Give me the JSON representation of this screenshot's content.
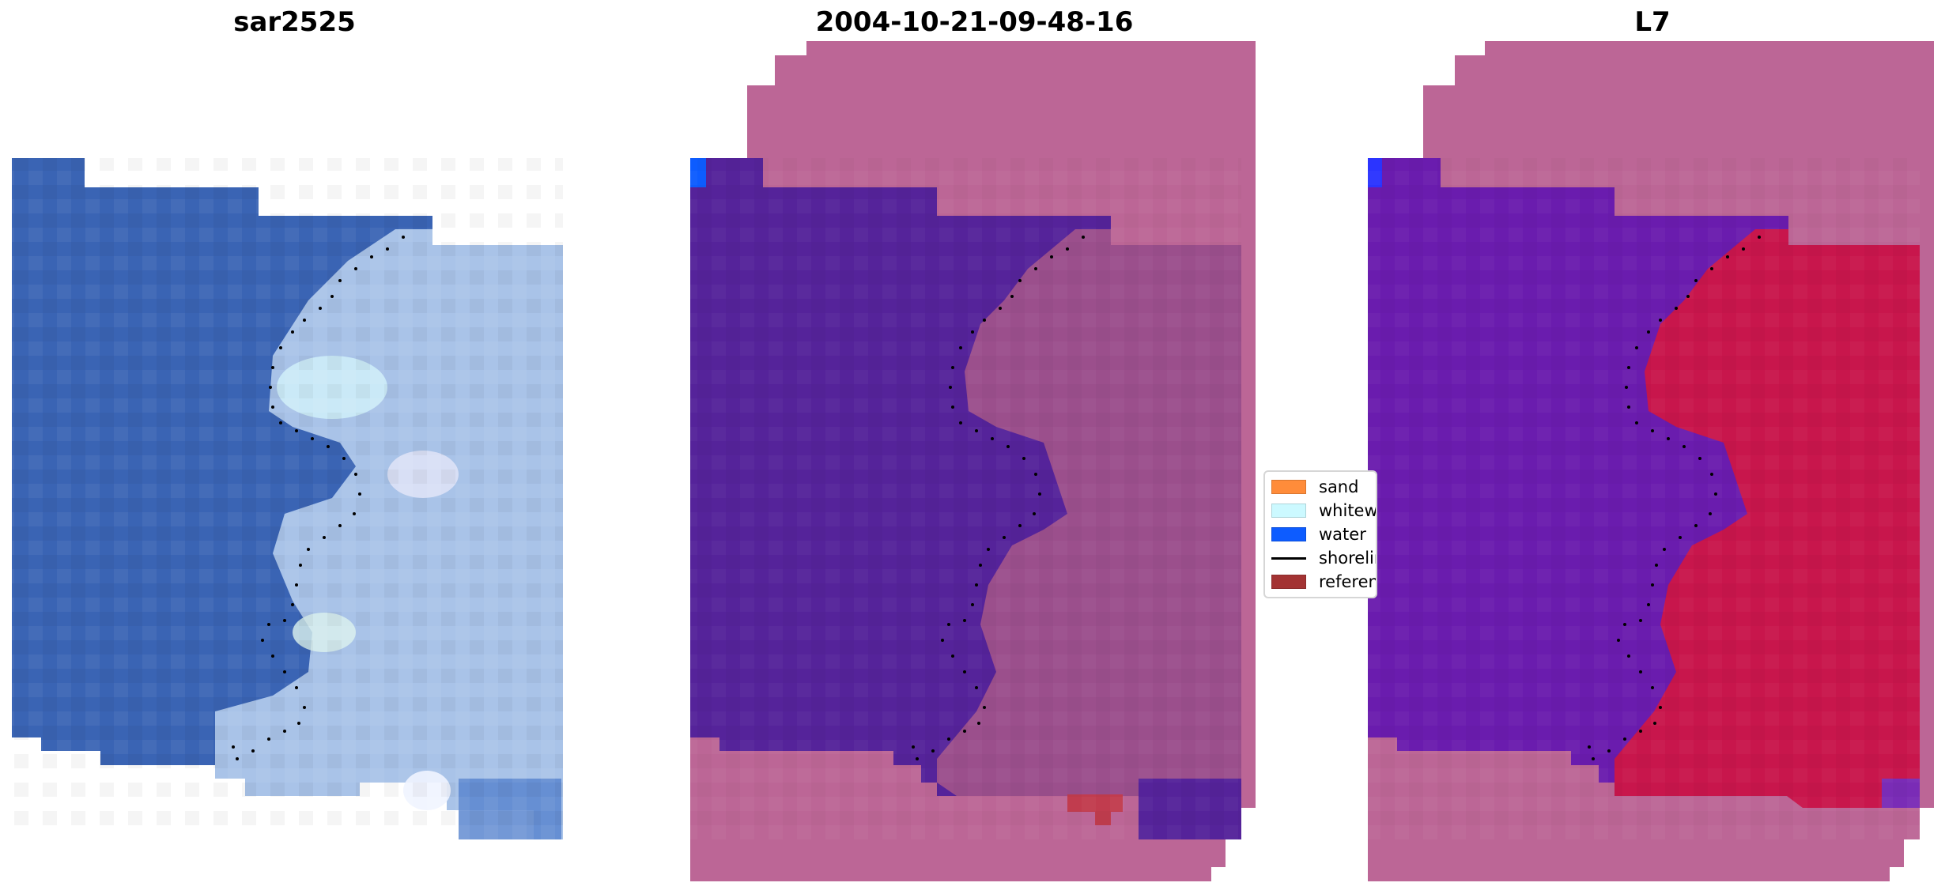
{
  "panels": [
    {
      "title": "sar2525"
    },
    {
      "title": "2004-10-21-09-48-16"
    },
    {
      "title": "L7"
    }
  ],
  "legend": {
    "items": [
      {
        "label": "sand",
        "color": "#ff8c3a"
      },
      {
        "label": "whitewater",
        "color": "#ccf9ff"
      },
      {
        "label": "water",
        "color": "#0d5cff"
      },
      {
        "label": "shoreline",
        "color": "#000000"
      },
      {
        "label": "reference",
        "color": "#a33333"
      }
    ]
  },
  "colors": {
    "rgb_water": "#3a64b4",
    "rgb_land": "#a9c3e8",
    "class_water": "#55239a",
    "class_land": "#9b4f8c",
    "class_background": "#bc6696",
    "index_water": "#6a1cae",
    "index_land": "#c8164c",
    "shoreline_dots": "#000000"
  }
}
